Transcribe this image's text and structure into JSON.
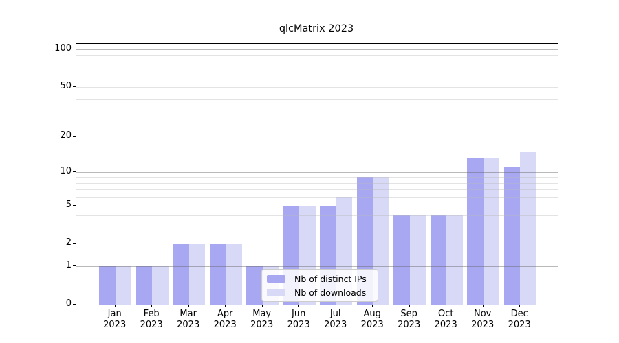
{
  "chart_data": {
    "type": "bar",
    "title": "qlcMatrix 2023",
    "categories": [
      "Jan",
      "Feb",
      "Mar",
      "Apr",
      "May",
      "Jun",
      "Jul",
      "Aug",
      "Sep",
      "Oct",
      "Nov",
      "Dec"
    ],
    "xtick_year": "2023",
    "series": [
      {
        "name": "Nb of distinct IPs",
        "color": "#a8a8f2",
        "values": [
          1,
          1,
          2,
          2,
          1,
          5,
          5,
          9,
          4,
          4,
          13,
          11
        ]
      },
      {
        "name": "Nb of downloads",
        "color": "#d8d8f7",
        "values": [
          1,
          1,
          2,
          2,
          1,
          5,
          6,
          9,
          4,
          4,
          13,
          15
        ]
      }
    ],
    "scale": "log10(1+x)",
    "ylim": [
      0,
      100
    ],
    "yticks": [
      0,
      1,
      2,
      5,
      10,
      20,
      50,
      100
    ],
    "grid_major": [
      1,
      10,
      100
    ],
    "grid_minor": [
      2,
      3,
      4,
      5,
      6,
      7,
      8,
      9,
      20,
      30,
      40,
      50,
      60,
      70,
      80,
      90
    ],
    "legend_position": "lower center",
    "grid": "on"
  }
}
